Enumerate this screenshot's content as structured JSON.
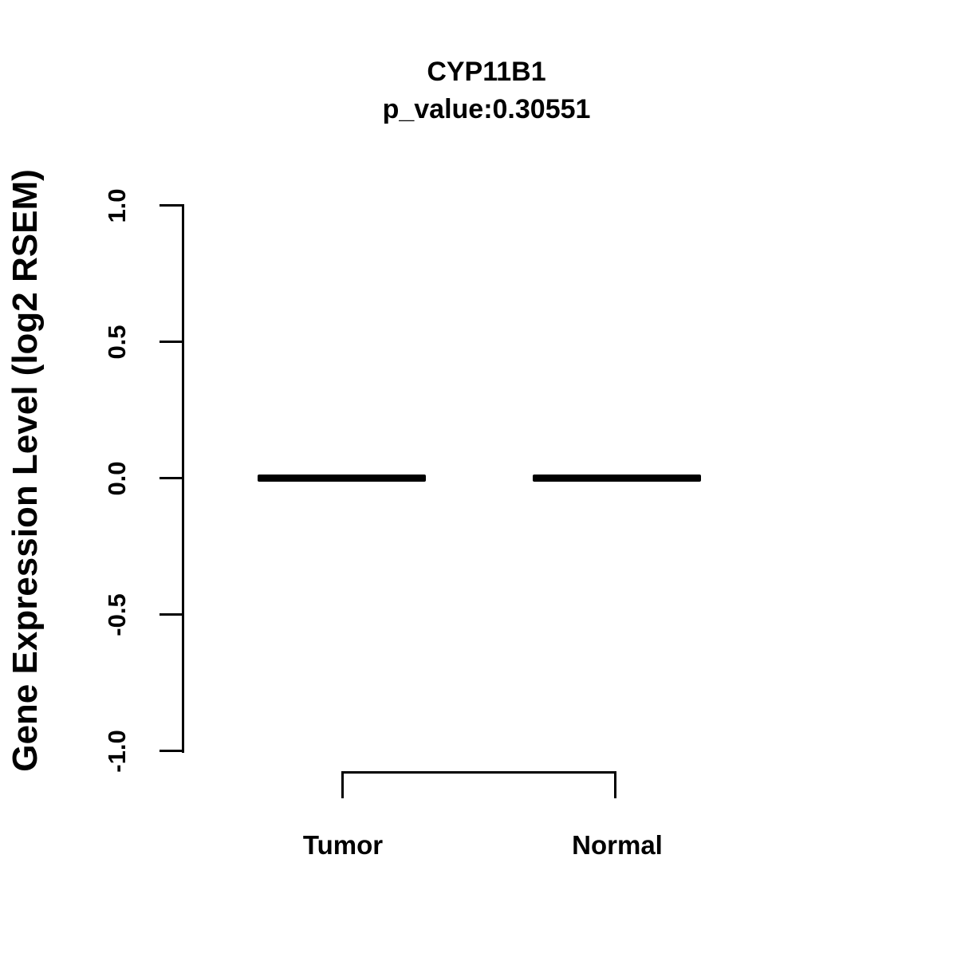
{
  "colors": {
    "foreground": "#000000",
    "background": "#ffffff"
  },
  "chart_data": {
    "type": "box",
    "title": "CYP11B1",
    "subtitle": "p_value:0.30551",
    "gene": "CYP11B1",
    "p_value": 0.30551,
    "ylabel": "Gene Expression Level (log2 RSEM)",
    "xlabel": "",
    "categories": [
      "Tumor",
      "Normal"
    ],
    "series": [
      {
        "name": "Tumor",
        "median": 0.0,
        "q1": 0.0,
        "q3": 0.0,
        "whisker_low": 0.0,
        "whisker_high": 0.0
      },
      {
        "name": "Normal",
        "median": 0.0,
        "q1": 0.0,
        "q3": 0.0,
        "whisker_low": 0.0,
        "whisker_high": 0.0
      }
    ],
    "ylim": [
      -1.0,
      1.0
    ],
    "ytick_values": [
      1.0,
      0.5,
      0.0,
      -0.5,
      -1.0
    ],
    "ytick_labels": [
      "1.0",
      "0.5",
      "0.0",
      "-0.5",
      "-1.0"
    ],
    "grid": false,
    "legend": "none",
    "comparison_bracket": {
      "from": "Tumor",
      "to": "Normal"
    }
  }
}
